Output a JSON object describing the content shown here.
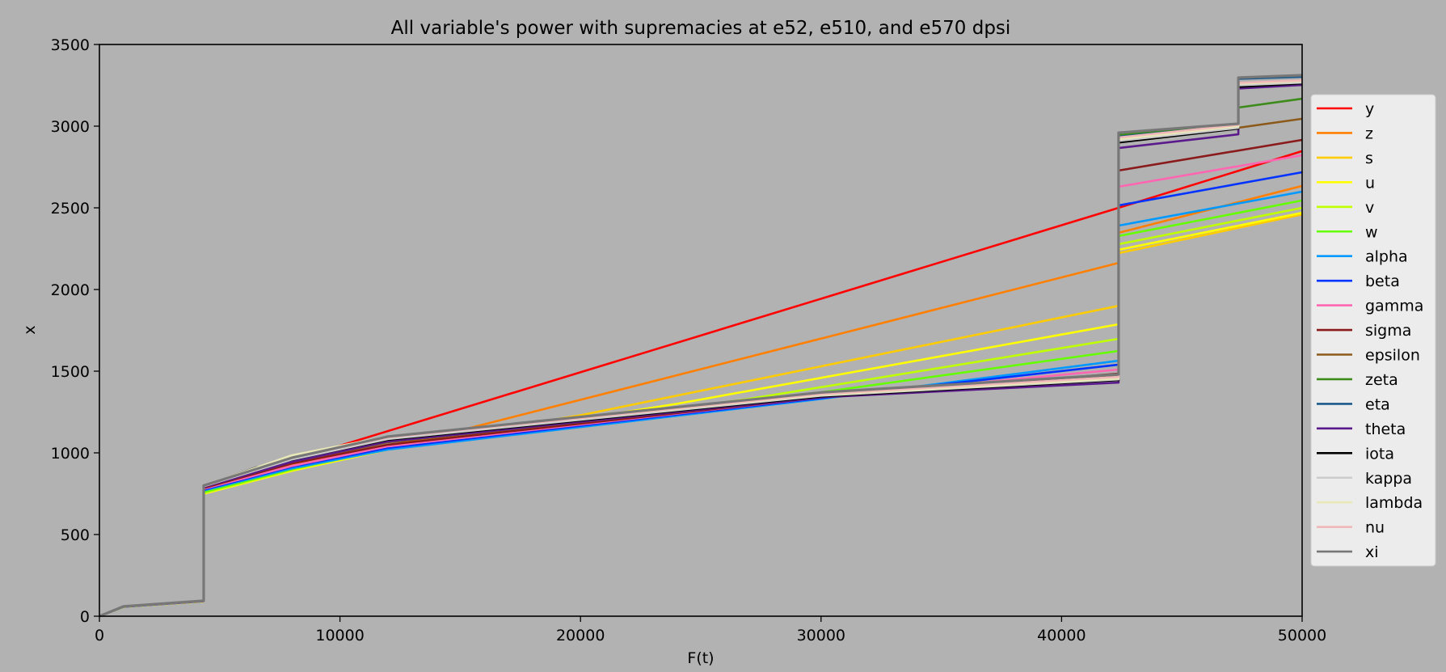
{
  "chart_data": {
    "type": "line",
    "title": "All variable's power with supremacies at e52, e510, and e570 dpsi",
    "xlabel": "F(t)",
    "ylabel": "x",
    "xlim": [
      0,
      50000
    ],
    "ylim": [
      0,
      3500
    ],
    "xticks": [
      0,
      10000,
      20000,
      30000,
      40000,
      50000
    ],
    "yticks": [
      0,
      500,
      1000,
      1500,
      2000,
      2500,
      3000,
      3500
    ],
    "grid": false,
    "legend_position": "right outside",
    "annotations": [],
    "steps_at": [
      4335,
      42370,
      47350
    ],
    "series": [
      {
        "name": "y",
        "color": "#ff0000",
        "points": [
          [
            0,
            0
          ],
          [
            1000,
            60
          ],
          [
            4335,
            94
          ],
          [
            4335,
            790
          ],
          [
            6000,
            860
          ],
          [
            8000,
            940
          ],
          [
            9700,
            1030
          ],
          [
            42370,
            2500
          ],
          [
            50000,
            2847
          ]
        ]
      },
      {
        "name": "z",
        "color": "#ff7f00",
        "points": [
          [
            0,
            0
          ],
          [
            1000,
            60
          ],
          [
            4335,
            94
          ],
          [
            4335,
            785
          ],
          [
            6000,
            855
          ],
          [
            8000,
            930
          ],
          [
            10000,
            990
          ],
          [
            14000,
            1100
          ],
          [
            42370,
            2163
          ],
          [
            42370,
            2347
          ],
          [
            50000,
            2634
          ]
        ]
      },
      {
        "name": "s",
        "color": "#ffcc00",
        "points": [
          [
            0,
            0
          ],
          [
            1000,
            58
          ],
          [
            4335,
            92
          ],
          [
            4335,
            770
          ],
          [
            8000,
            910
          ],
          [
            12000,
            1040
          ],
          [
            20000,
            1230
          ],
          [
            42370,
            1900
          ],
          [
            42370,
            2223
          ],
          [
            50000,
            2460
          ]
        ]
      },
      {
        "name": "u",
        "color": "#ffff00",
        "points": [
          [
            0,
            0
          ],
          [
            1000,
            57
          ],
          [
            4335,
            90
          ],
          [
            4335,
            750
          ],
          [
            8000,
            890
          ],
          [
            12000,
            1020
          ],
          [
            24000,
            1300
          ],
          [
            42370,
            1787
          ],
          [
            42370,
            2243
          ],
          [
            50000,
            2470
          ]
        ]
      },
      {
        "name": "v",
        "color": "#bfff00",
        "points": [
          [
            0,
            0
          ],
          [
            1000,
            57
          ],
          [
            4335,
            91
          ],
          [
            4335,
            755
          ],
          [
            8000,
            895
          ],
          [
            12000,
            1025
          ],
          [
            27000,
            1330
          ],
          [
            42370,
            1698
          ],
          [
            42370,
            2277
          ],
          [
            50000,
            2500
          ]
        ]
      },
      {
        "name": "w",
        "color": "#66ff00",
        "points": [
          [
            0,
            0
          ],
          [
            1000,
            57
          ],
          [
            4335,
            91
          ],
          [
            4335,
            760
          ],
          [
            8000,
            900
          ],
          [
            12000,
            1030
          ],
          [
            28000,
            1330
          ],
          [
            42370,
            1624
          ],
          [
            42370,
            2327
          ],
          [
            50000,
            2545
          ]
        ]
      },
      {
        "name": "alpha",
        "color": "#0099ff",
        "points": [
          [
            0,
            0
          ],
          [
            1000,
            58
          ],
          [
            4335,
            92
          ],
          [
            4335,
            770
          ],
          [
            8000,
            905
          ],
          [
            12000,
            1020
          ],
          [
            30000,
            1330
          ],
          [
            42370,
            1564
          ],
          [
            42370,
            2391
          ],
          [
            50000,
            2599
          ]
        ]
      },
      {
        "name": "beta",
        "color": "#0033ff",
        "points": [
          [
            0,
            0
          ],
          [
            1000,
            58
          ],
          [
            4335,
            92
          ],
          [
            4335,
            775
          ],
          [
            8000,
            915
          ],
          [
            12000,
            1030
          ],
          [
            30000,
            1335
          ],
          [
            42370,
            1540
          ],
          [
            42370,
            2515
          ],
          [
            50000,
            2718
          ]
        ]
      },
      {
        "name": "gamma",
        "color": "#ff66b2",
        "points": [
          [
            0,
            0
          ],
          [
            1000,
            58
          ],
          [
            4335,
            92
          ],
          [
            4335,
            780
          ],
          [
            8000,
            920
          ],
          [
            12000,
            1040
          ],
          [
            30000,
            1340
          ],
          [
            42370,
            1510
          ],
          [
            42370,
            2629
          ],
          [
            50000,
            2822
          ]
        ]
      },
      {
        "name": "sigma",
        "color": "#8b1a1a",
        "points": [
          [
            0,
            0
          ],
          [
            1000,
            59
          ],
          [
            4335,
            93
          ],
          [
            4335,
            785
          ],
          [
            8000,
            935
          ],
          [
            12000,
            1050
          ],
          [
            30000,
            1340
          ],
          [
            42370,
            1485
          ],
          [
            42370,
            2728
          ],
          [
            50000,
            2916
          ]
        ]
      },
      {
        "name": "epsilon",
        "color": "#8b5a1a",
        "points": [
          [
            0,
            0
          ],
          [
            1000,
            59
          ],
          [
            4335,
            93
          ],
          [
            4335,
            790
          ],
          [
            8000,
            945
          ],
          [
            12000,
            1065
          ],
          [
            30000,
            1345
          ],
          [
            42370,
            1470
          ],
          [
            42370,
            2930
          ],
          [
            47350,
            2990
          ],
          [
            50000,
            3045
          ]
        ]
      },
      {
        "name": "zeta",
        "color": "#3d8b1a",
        "points": [
          [
            0,
            0
          ],
          [
            1000,
            60
          ],
          [
            4335,
            94
          ],
          [
            4335,
            800
          ],
          [
            8000,
            950
          ],
          [
            12000,
            1070
          ],
          [
            30000,
            1345
          ],
          [
            42370,
            1460
          ],
          [
            42370,
            2945
          ],
          [
            47350,
            3015
          ],
          [
            47350,
            3114
          ],
          [
            50000,
            3168
          ]
        ]
      },
      {
        "name": "eta",
        "color": "#1a5a8b",
        "points": [
          [
            0,
            0
          ],
          [
            1000,
            60
          ],
          [
            4335,
            94
          ],
          [
            4335,
            798
          ],
          [
            8000,
            950
          ],
          [
            12000,
            1070
          ],
          [
            30000,
            1345
          ],
          [
            42370,
            1455
          ],
          [
            42370,
            2935
          ],
          [
            47350,
            3005
          ],
          [
            47350,
            3290
          ],
          [
            50000,
            3302
          ]
        ]
      },
      {
        "name": "theta",
        "color": "#5a1a8b",
        "points": [
          [
            0,
            0
          ],
          [
            1000,
            59
          ],
          [
            4335,
            93
          ],
          [
            4335,
            790
          ],
          [
            8000,
            945
          ],
          [
            12000,
            1070
          ],
          [
            30000,
            1340
          ],
          [
            42370,
            1430
          ],
          [
            42370,
            2866
          ],
          [
            47350,
            2950
          ],
          [
            47350,
            3230
          ],
          [
            50000,
            3252
          ]
        ]
      },
      {
        "name": "iota",
        "color": "#000000",
        "points": [
          [
            0,
            0
          ],
          [
            1000,
            60
          ],
          [
            4335,
            94
          ],
          [
            4335,
            795
          ],
          [
            6500,
            910
          ],
          [
            9000,
            990
          ],
          [
            12000,
            1080
          ],
          [
            30000,
            1345
          ],
          [
            42370,
            1445
          ],
          [
            42370,
            2900
          ],
          [
            47350,
            2985
          ],
          [
            47350,
            3240
          ],
          [
            50000,
            3262
          ]
        ]
      },
      {
        "name": "kappa",
        "color": "#cccccc",
        "points": [
          [
            0,
            0
          ],
          [
            1000,
            60
          ],
          [
            4335,
            94
          ],
          [
            4335,
            795
          ],
          [
            8000,
            960
          ],
          [
            12000,
            1085
          ],
          [
            30000,
            1350
          ],
          [
            42370,
            1450
          ],
          [
            42370,
            2910
          ],
          [
            47350,
            2990
          ],
          [
            47350,
            3250
          ],
          [
            50000,
            3267
          ]
        ]
      },
      {
        "name": "lambda",
        "color": "#e8e8b8",
        "points": [
          [
            0,
            0
          ],
          [
            1000,
            60
          ],
          [
            4335,
            94
          ],
          [
            4335,
            797
          ],
          [
            8000,
            985
          ],
          [
            12000,
            1100
          ],
          [
            30000,
            1355
          ],
          [
            42370,
            1455
          ],
          [
            42370,
            2920
          ],
          [
            47350,
            3000
          ],
          [
            47350,
            3260
          ],
          [
            50000,
            3275
          ]
        ]
      },
      {
        "name": "nu",
        "color": "#f0b8b8",
        "points": [
          [
            0,
            0
          ],
          [
            1000,
            60
          ],
          [
            4335,
            94
          ],
          [
            4335,
            797
          ],
          [
            8000,
            970
          ],
          [
            12000,
            1095
          ],
          [
            30000,
            1360
          ],
          [
            42370,
            1465
          ],
          [
            42370,
            2930
          ],
          [
            47350,
            3008
          ],
          [
            47350,
            3265
          ],
          [
            50000,
            3280
          ]
        ]
      },
      {
        "name": "xi",
        "color": "#777777",
        "points": [
          [
            0,
            0
          ],
          [
            1000,
            60
          ],
          [
            4335,
            95
          ],
          [
            4335,
            800
          ],
          [
            8000,
            970
          ],
          [
            12000,
            1100
          ],
          [
            30000,
            1370
          ],
          [
            42370,
            1480
          ],
          [
            42370,
            2960
          ],
          [
            47350,
            3015
          ],
          [
            47350,
            3297
          ],
          [
            50000,
            3312
          ]
        ]
      }
    ]
  }
}
